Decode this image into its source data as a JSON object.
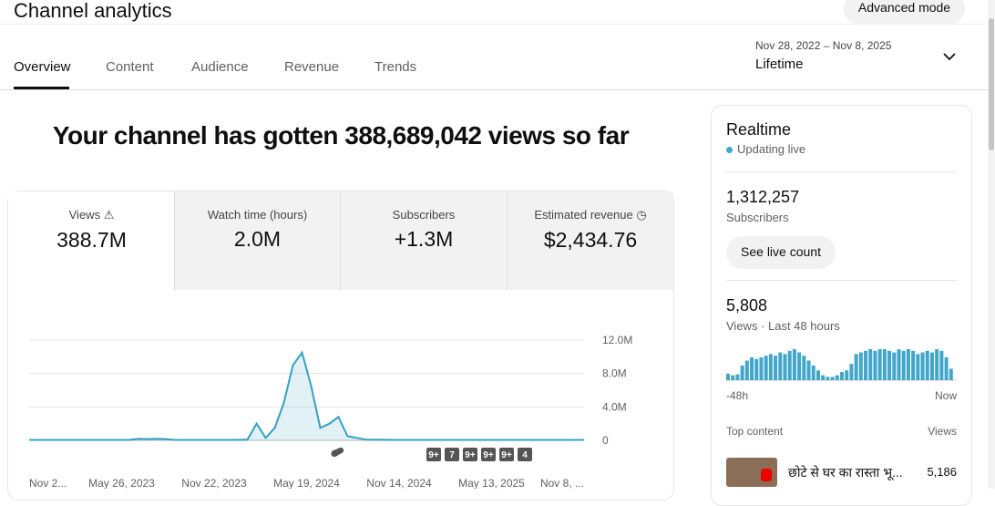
{
  "header": {
    "title": "Channel analytics",
    "advanced_mode": "Advanced mode"
  },
  "tabs": [
    "Overview",
    "Content",
    "Audience",
    "Revenue",
    "Trends"
  ],
  "date_range": {
    "range": "Nov 28, 2022 – Nov 8, 2025",
    "label": "Lifetime"
  },
  "headline": "Your channel has gotten 388,689,042 views so far",
  "metrics": [
    {
      "label": "Views",
      "value": "388.7M"
    },
    {
      "label": "Watch time (hours)",
      "value": "2.0M"
    },
    {
      "label": "Subscribers",
      "value": "+1.3M"
    },
    {
      "label": "Estimated revenue",
      "value": "$2,434.76"
    }
  ],
  "chart_data": {
    "type": "line",
    "color": "#35a0c2",
    "values": [
      50000,
      50000,
      50000,
      50000,
      50000,
      50000,
      50000,
      50000,
      50000,
      50000,
      50000,
      50000,
      200000,
      150000,
      200000,
      150000,
      50000,
      50000,
      50000,
      50000,
      50000,
      50000,
      50000,
      50000,
      100000,
      2000000,
      300000,
      1500000,
      4500000,
      9000000,
      10500000,
      6500000,
      1500000,
      2000000,
      2800000,
      500000,
      300000,
      100000,
      80000,
      60000,
      50000,
      50000,
      50000,
      50000,
      50000,
      50000,
      50000,
      50000,
      50000,
      50000,
      50000,
      50000,
      50000,
      50000,
      50000,
      50000,
      50000,
      50000,
      50000,
      50000,
      50000,
      50000
    ],
    "ylim": [
      0,
      12000000
    ],
    "yticks": [
      0,
      {
        "value": 4000000,
        "label": "4.0M"
      },
      {
        "value": 8000000,
        "label": "8.0M"
      },
      {
        "value": 12000000,
        "label": "12.0M"
      }
    ],
    "x_tick_labels": [
      "Nov 2...",
      "May 26, 2023",
      "Nov 22, 2023",
      "May 19, 2024",
      "Nov 14, 2024",
      "May 13, 2025",
      "Nov 8, ..."
    ],
    "annotations": [
      "9+",
      "7",
      "9+",
      "9+",
      "9+",
      "4"
    ],
    "grid": true
  },
  "realtime": {
    "title": "Realtime",
    "status": "Updating live",
    "subscribers": "1,312,257",
    "subscribers_label": "Subscribers",
    "button": "See live count",
    "views": "5,808",
    "views_label": "Views · Last 48 hours",
    "chart_data": {
      "type": "bar",
      "color": "#41a6c9",
      "values": [
        40,
        30,
        35,
        90,
        120,
        140,
        130,
        140,
        150,
        160,
        150,
        170,
        160,
        180,
        190,
        170,
        150,
        120,
        90,
        60,
        30,
        20,
        20,
        30,
        50,
        60,
        100,
        160,
        170,
        180,
        190,
        180,
        190,
        190,
        180,
        170,
        190,
        180,
        190,
        180,
        160,
        170,
        180,
        170,
        190,
        180,
        140,
        70
      ],
      "x_tick_labels": [
        "-48h",
        "Now"
      ]
    },
    "top_content_label": "Top content",
    "top_views_label": "Views",
    "top_content": [
      {
        "title": "छोटे से घर का रास्ता भू...",
        "views": "5,186"
      }
    ]
  }
}
